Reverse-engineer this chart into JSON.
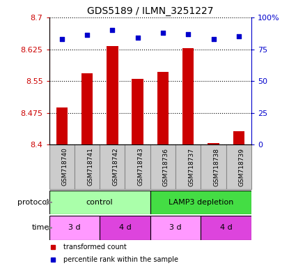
{
  "title": "GDS5189 / ILMN_3251227",
  "samples": [
    "GSM718740",
    "GSM718741",
    "GSM718742",
    "GSM718743",
    "GSM718736",
    "GSM718737",
    "GSM718738",
    "GSM718739"
  ],
  "bar_values": [
    8.487,
    8.568,
    8.632,
    8.555,
    8.572,
    8.628,
    8.404,
    8.432
  ],
  "percentile_values": [
    83,
    86,
    90,
    84,
    88,
    87,
    83,
    85
  ],
  "bar_color": "#cc0000",
  "dot_color": "#0000cc",
  "ylim_left": [
    8.4,
    8.7
  ],
  "ylim_right": [
    0,
    100
  ],
  "yticks_left": [
    8.4,
    8.475,
    8.55,
    8.625,
    8.7
  ],
  "ytick_labels_left": [
    "8.4",
    "8.475",
    "8.55",
    "8.625",
    "8.7"
  ],
  "yticks_right": [
    0,
    25,
    50,
    75,
    100
  ],
  "ytick_labels_right": [
    "0",
    "25",
    "50",
    "75",
    "100%"
  ],
  "protocol_groups": [
    {
      "label": "control",
      "start": 0,
      "end": 4,
      "color": "#aaffaa"
    },
    {
      "label": "LAMP3 depletion",
      "start": 4,
      "end": 8,
      "color": "#44dd44"
    }
  ],
  "time_groups": [
    {
      "label": "3 d",
      "start": 0,
      "end": 2,
      "color": "#ff99ff"
    },
    {
      "label": "4 d",
      "start": 2,
      "end": 4,
      "color": "#dd44dd"
    },
    {
      "label": "3 d",
      "start": 4,
      "end": 6,
      "color": "#ff99ff"
    },
    {
      "label": "4 d",
      "start": 6,
      "end": 8,
      "color": "#dd44dd"
    }
  ],
  "legend_items": [
    {
      "label": "transformed count",
      "color": "#cc0000",
      "marker": "s"
    },
    {
      "label": "percentile rank within the sample",
      "color": "#0000cc",
      "marker": "s"
    }
  ],
  "protocol_label": "protocol",
  "time_label": "time",
  "bar_bottom": 8.4,
  "sample_bg_color": "#cccccc",
  "sample_border_color": "#888888"
}
